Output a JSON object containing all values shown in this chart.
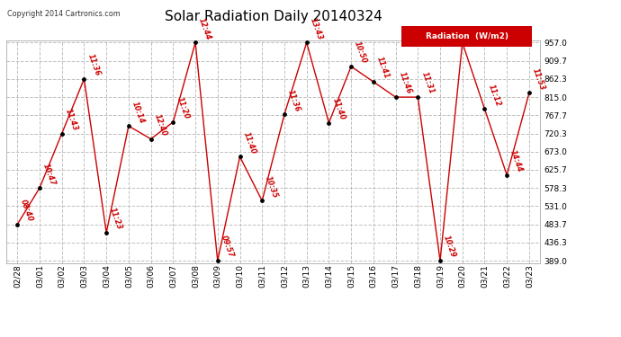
{
  "title": "Solar Radiation Daily 20140324",
  "copyright": "Copyright 2014 Cartronics.com",
  "legend_label": "Radiation  (W/m2)",
  "dates": [
    "02/28",
    "03/01",
    "03/02",
    "03/03",
    "03/04",
    "03/05",
    "03/06",
    "03/07",
    "03/08",
    "03/09",
    "03/10",
    "03/11",
    "03/12",
    "03/13",
    "03/14",
    "03/15",
    "03/16",
    "03/17",
    "03/18",
    "03/19",
    "03/20",
    "03/21",
    "03/22",
    "03/23"
  ],
  "values": [
    483.7,
    578.3,
    720.3,
    862.3,
    462.0,
    740.0,
    706.0,
    750.0,
    957.0,
    389.0,
    660.0,
    545.0,
    770.0,
    957.0,
    748.0,
    895.0,
    855.0,
    815.0,
    815.0,
    389.0,
    957.0,
    784.0,
    612.0,
    826.0
  ],
  "time_labels": [
    "08:40",
    "10:47",
    "11:43",
    "11:36",
    "11:23",
    "10:14",
    "12:40",
    "11:20",
    "12:44",
    "09:57",
    "11:40",
    "10:35",
    "11:36",
    "13:43",
    "11:40",
    "10:50",
    "11:41",
    "11:46",
    "11:31",
    "10:29",
    "",
    "11:12",
    "14:44",
    "11:53"
  ],
  "ylim_min": 389.0,
  "ylim_max": 957.0,
  "yticks": [
    389.0,
    436.3,
    483.7,
    531.0,
    578.3,
    625.7,
    673.0,
    720.3,
    767.7,
    815.0,
    862.3,
    909.7,
    957.0
  ],
  "line_color": "#cc0000",
  "marker_color": "#000000",
  "bg_color": "#ffffff",
  "grid_color": "#c0c0c0",
  "title_fontsize": 11,
  "legend_bg": "#cc0000",
  "legend_fg": "#ffffff"
}
